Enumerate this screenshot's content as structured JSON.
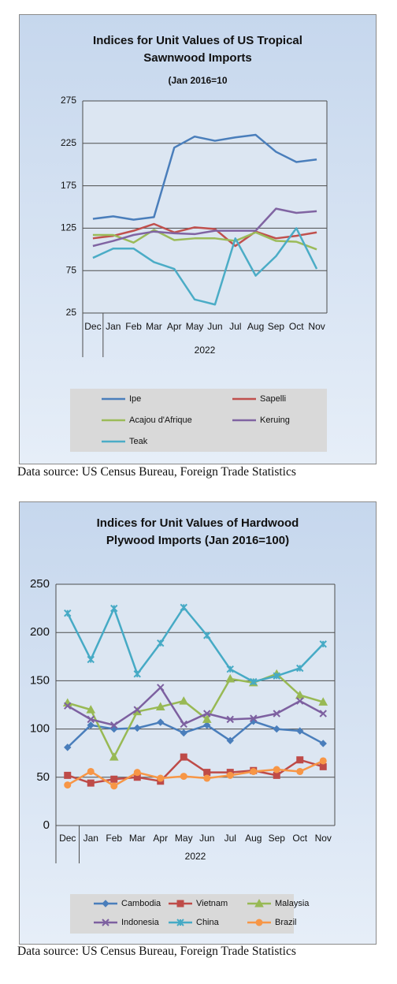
{
  "chart_data": [
    {
      "type": "line",
      "title": "Indices for Unit Values of US Tropical Sawnwood Imports",
      "subtitle": "(Jan 2016=10",
      "categories": [
        "Dec",
        "Jan",
        "Feb",
        "Mar",
        "Apr",
        "May",
        "Jun",
        "Jul",
        "Aug",
        "Sep",
        "Oct",
        "Nov"
      ],
      "x_group_label": "2022",
      "ylim": [
        25,
        275
      ],
      "yticks": [
        25,
        75,
        125,
        175,
        225,
        275
      ],
      "grid": true,
      "series": [
        {
          "name": "Ipe",
          "color": "#4a7ebb",
          "values": [
            136,
            139,
            135,
            138,
            220,
            233,
            228,
            232,
            235,
            215,
            203,
            206
          ]
        },
        {
          "name": "Sapelli",
          "color": "#c0504d",
          "values": [
            113,
            116,
            122,
            130,
            120,
            126,
            124,
            104,
            121,
            113,
            116,
            120
          ]
        },
        {
          "name": "Acajou d'Afrique",
          "color": "#9bbb59",
          "values": [
            117,
            117,
            108,
            123,
            111,
            113,
            113,
            110,
            120,
            110,
            109,
            100
          ]
        },
        {
          "name": "Keruing",
          "color": "#8064a2",
          "values": [
            104,
            110,
            117,
            121,
            119,
            118,
            122,
            122,
            122,
            148,
            143,
            145
          ]
        },
        {
          "name": "Teak",
          "color": "#4bacc6",
          "values": [
            90,
            101,
            101,
            85,
            77,
            41,
            35,
            113,
            69,
            92,
            125,
            77
          ]
        }
      ]
    },
    {
      "type": "line",
      "title": "Indices for Unit Values of Hardwood Plywood Imports (Jan 2016=100)",
      "categories": [
        "Dec",
        "Jan",
        "Feb",
        "Mar",
        "Apr",
        "May",
        "Jun",
        "Jul",
        "Aug",
        "Sep",
        "Oct",
        "Nov"
      ],
      "x_group_label": "2022",
      "ylim": [
        0,
        250
      ],
      "yticks": [
        0,
        50,
        100,
        150,
        200,
        250
      ],
      "grid": true,
      "series": [
        {
          "name": "Cambodia",
          "color": "#4a7ebb",
          "marker": "diamond",
          "values": [
            81,
            104,
            100,
            101,
            107,
            96,
            104,
            88,
            108,
            100,
            98,
            85
          ]
        },
        {
          "name": "Vietnam",
          "color": "#be4b48",
          "marker": "square",
          "values": [
            52,
            44,
            48,
            50,
            46,
            71,
            55,
            55,
            57,
            52,
            68,
            61
          ]
        },
        {
          "name": "Malaysia",
          "color": "#98b954",
          "marker": "triangle",
          "values": [
            127,
            120,
            71,
            118,
            123,
            129,
            110,
            152,
            148,
            157,
            135,
            128
          ]
        },
        {
          "name": "Indonesia",
          "color": "#7d60a0",
          "marker": "x",
          "values": [
            124,
            110,
            104,
            120,
            143,
            105,
            116,
            110,
            111,
            116,
            129,
            116
          ]
        },
        {
          "name": "China",
          "color": "#46aac5",
          "marker": "star",
          "values": [
            220,
            172,
            225,
            157,
            189,
            226,
            197,
            162,
            149,
            155,
            163,
            188
          ]
        },
        {
          "name": "Brazil",
          "color": "#f79646",
          "marker": "circle",
          "values": [
            42,
            56,
            41,
            55,
            49,
            51,
            49,
            52,
            56,
            58,
            56,
            67
          ]
        }
      ]
    }
  ],
  "captions": [
    "Data source: US Census Bureau, Foreign Trade Statistics",
    "Data source: US Census Bureau, Foreign Trade Statistics"
  ]
}
